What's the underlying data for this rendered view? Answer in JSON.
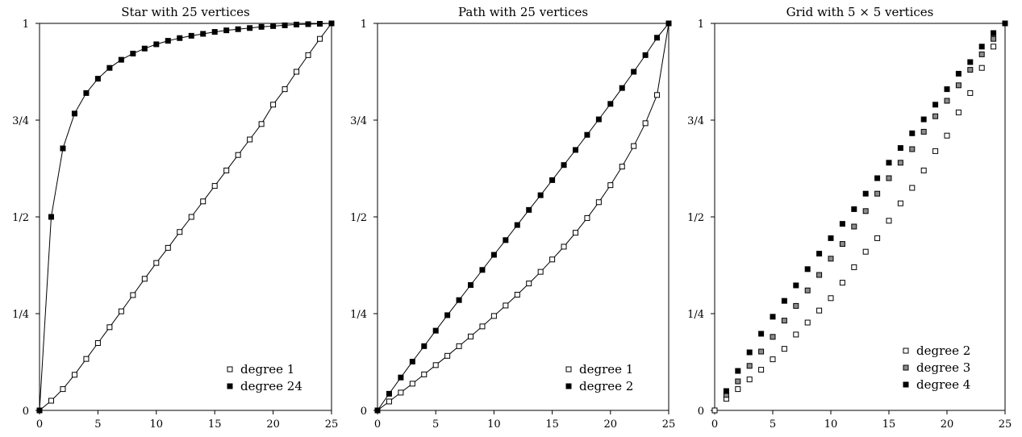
{
  "figure": {
    "panel_titles": [
      "Star with 25 vertices",
      "Path with 25 vertices",
      "Grid with 5 × 5 vertices"
    ]
  },
  "chart_data": [
    {
      "type": "line",
      "title": "Star with 25 vertices",
      "xlabel": "",
      "ylabel": "",
      "xlim": [
        0,
        25
      ],
      "ylim": [
        0,
        1
      ],
      "xticks": [
        0,
        5,
        10,
        15,
        20,
        25
      ],
      "xtick_labels": [
        "0",
        "5",
        "10",
        "15",
        "20",
        "25"
      ],
      "yticks": [
        0,
        0.25,
        0.5,
        0.75,
        1
      ],
      "ytick_labels": [
        "0",
        "1/4",
        "1/2",
        "3/4",
        "1"
      ],
      "grid": false,
      "legend_position": "bottom-right",
      "series": [
        {
          "name": "degree 1",
          "marker": "open-square",
          "connected": true,
          "x": [
            0,
            1,
            2,
            3,
            4,
            5,
            6,
            7,
            8,
            9,
            10,
            11,
            12,
            13,
            14,
            15,
            16,
            17,
            18,
            19,
            20,
            21,
            22,
            23,
            24,
            25
          ],
          "y": [
            0,
            0.025,
            0.055,
            0.092,
            0.133,
            0.174,
            0.215,
            0.256,
            0.298,
            0.34,
            0.381,
            0.42,
            0.461,
            0.5,
            0.54,
            0.58,
            0.62,
            0.66,
            0.7,
            0.74,
            0.79,
            0.83,
            0.875,
            0.918,
            0.96,
            1
          ]
        },
        {
          "name": "degree 24",
          "marker": "filled-square",
          "connected": true,
          "x": [
            0,
            1,
            2,
            3,
            4,
            5,
            6,
            7,
            8,
            9,
            10,
            11,
            12,
            13,
            14,
            15,
            16,
            17,
            18,
            19,
            20,
            21,
            22,
            23,
            24,
            25
          ],
          "y": [
            0,
            0.5,
            0.677,
            0.767,
            0.82,
            0.857,
            0.885,
            0.906,
            0.922,
            0.935,
            0.946,
            0.955,
            0.962,
            0.968,
            0.973,
            0.978,
            0.982,
            0.985,
            0.988,
            0.991,
            0.993,
            0.995,
            0.997,
            0.998,
            0.999,
            1
          ]
        }
      ]
    },
    {
      "type": "line",
      "title": "Path with 25 vertices",
      "xlabel": "",
      "ylabel": "",
      "xlim": [
        0,
        25
      ],
      "ylim": [
        0,
        1
      ],
      "xticks": [
        0,
        5,
        10,
        15,
        20,
        25
      ],
      "xtick_labels": [
        "0",
        "5",
        "10",
        "15",
        "20",
        "25"
      ],
      "yticks": [
        0,
        0.25,
        0.5,
        0.75,
        1
      ],
      "ytick_labels": [
        "0",
        "1/4",
        "1/2",
        "3/4",
        "1"
      ],
      "grid": false,
      "legend_position": "bottom-right",
      "series": [
        {
          "name": "degree 1",
          "marker": "open-square",
          "connected": true,
          "x": [
            0,
            1,
            2,
            3,
            4,
            5,
            6,
            7,
            8,
            9,
            10,
            11,
            12,
            13,
            14,
            15,
            16,
            17,
            18,
            19,
            20,
            21,
            22,
            23,
            24,
            25
          ],
          "y": [
            0,
            0.023,
            0.046,
            0.069,
            0.093,
            0.117,
            0.141,
            0.166,
            0.191,
            0.217,
            0.244,
            0.271,
            0.299,
            0.328,
            0.358,
            0.39,
            0.423,
            0.459,
            0.497,
            0.538,
            0.582,
            0.63,
            0.683,
            0.742,
            0.815,
            1
          ]
        },
        {
          "name": "degree 2",
          "marker": "filled-square",
          "connected": true,
          "x": [
            0,
            1,
            2,
            3,
            4,
            5,
            6,
            7,
            8,
            9,
            10,
            11,
            12,
            13,
            14,
            15,
            16,
            17,
            18,
            19,
            20,
            21,
            22,
            23,
            24,
            25
          ],
          "y": [
            0,
            0.043,
            0.085,
            0.126,
            0.166,
            0.206,
            0.246,
            0.285,
            0.324,
            0.363,
            0.402,
            0.44,
            0.479,
            0.518,
            0.556,
            0.595,
            0.634,
            0.673,
            0.712,
            0.752,
            0.792,
            0.833,
            0.875,
            0.918,
            0.963,
            1
          ]
        }
      ]
    },
    {
      "type": "scatter",
      "title": "Grid with 5 × 5 vertices",
      "xlabel": "",
      "ylabel": "",
      "xlim": [
        0,
        25
      ],
      "ylim": [
        0,
        1
      ],
      "xticks": [
        0,
        5,
        10,
        15,
        20,
        25
      ],
      "xtick_labels": [
        "0",
        "5",
        "10",
        "15",
        "20",
        "25"
      ],
      "yticks": [
        0,
        0.25,
        0.5,
        0.75,
        1
      ],
      "ytick_labels": [
        "0",
        "1/4",
        "1/2",
        "3/4",
        "1"
      ],
      "grid": false,
      "legend_position": "bottom-right",
      "series": [
        {
          "name": "degree 2",
          "marker": "open-square",
          "connected": false,
          "x": [
            0,
            1,
            2,
            3,
            4,
            5,
            6,
            7,
            8,
            9,
            10,
            11,
            12,
            13,
            14,
            15,
            16,
            17,
            18,
            19,
            20,
            21,
            22,
            23,
            24,
            25
          ],
          "y": [
            0,
            0.03,
            0.055,
            0.08,
            0.105,
            0.132,
            0.159,
            0.196,
            0.227,
            0.258,
            0.29,
            0.33,
            0.37,
            0.41,
            0.445,
            0.49,
            0.535,
            0.575,
            0.62,
            0.67,
            0.71,
            0.77,
            0.82,
            0.885,
            0.94,
            1
          ]
        },
        {
          "name": "degree 3",
          "marker": "gray-square",
          "connected": false,
          "x": [
            1,
            2,
            3,
            4,
            5,
            6,
            7,
            8,
            9,
            10,
            11,
            12,
            13,
            14,
            15,
            16,
            17,
            18,
            19,
            20,
            21,
            22,
            23,
            24,
            25
          ],
          "y": [
            0.04,
            0.075,
            0.115,
            0.152,
            0.19,
            0.232,
            0.27,
            0.31,
            0.35,
            0.392,
            0.43,
            0.475,
            0.515,
            0.56,
            0.6,
            0.64,
            0.675,
            0.72,
            0.76,
            0.8,
            0.84,
            0.88,
            0.92,
            0.96,
            1
          ]
        },
        {
          "name": "degree 4",
          "marker": "filled-square",
          "connected": false,
          "x": [
            1,
            2,
            3,
            4,
            5,
            6,
            7,
            8,
            9,
            10,
            11,
            12,
            13,
            14,
            15,
            16,
            17,
            18,
            19,
            20,
            21,
            22,
            23,
            24,
            25
          ],
          "y": [
            0.05,
            0.102,
            0.15,
            0.198,
            0.242,
            0.283,
            0.323,
            0.365,
            0.405,
            0.445,
            0.482,
            0.52,
            0.56,
            0.6,
            0.64,
            0.678,
            0.716,
            0.752,
            0.79,
            0.83,
            0.87,
            0.9,
            0.94,
            0.975,
            1
          ]
        }
      ]
    }
  ]
}
